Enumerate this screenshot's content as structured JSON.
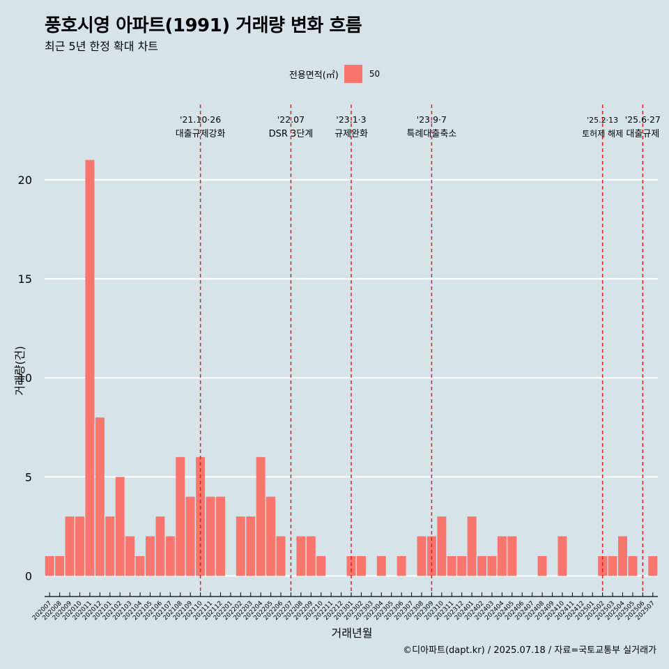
{
  "header": {
    "title": "풍호시영 아파트(1991) 거래량 변화 흐름",
    "subtitle": "최근 5년 한정 확대 차트"
  },
  "legend": {
    "title": "전용면적(㎡)",
    "items": [
      {
        "label": "50",
        "color": "#f8766d"
      }
    ]
  },
  "caption": "©디아파트(dapt.kr) / 2025.07.18 / 자료=국토교통부 실거래가",
  "chart_data": {
    "type": "bar",
    "xlabel": "거래년월",
    "ylabel": "거래량(건)",
    "ylim": [
      -0.9,
      23.8
    ],
    "yticks": [
      0,
      5,
      10,
      15,
      20
    ],
    "bar_color": "#f8766d",
    "categories": [
      "202007",
      "202008",
      "202009",
      "202010",
      "202011",
      "202012",
      "202101",
      "202102",
      "202103",
      "202104",
      "202105",
      "202106",
      "202107",
      "202108",
      "202109",
      "202110",
      "202111",
      "202112",
      "202201",
      "202202",
      "202203",
      "202204",
      "202205",
      "202206",
      "202207",
      "202208",
      "202209",
      "202210",
      "202211",
      "202212",
      "202301",
      "202302",
      "202303",
      "202304",
      "202305",
      "202306",
      "202307",
      "202308",
      "202309",
      "202310",
      "202311",
      "202312",
      "202401",
      "202402",
      "202403",
      "202404",
      "202405",
      "202406",
      "202407",
      "202408",
      "202409",
      "202410",
      "202411",
      "202412",
      "202501",
      "202502",
      "202503",
      "202504",
      "202505",
      "202506",
      "202507"
    ],
    "series": [
      {
        "values": [
          1,
          1,
          3,
          3,
          21,
          8,
          3,
          5,
          2,
          1,
          2,
          3,
          2,
          6,
          4,
          6,
          4,
          4,
          0,
          3,
          3,
          6,
          4,
          2,
          0,
          2,
          2,
          1,
          0,
          0,
          1,
          1,
          0,
          1,
          0,
          1,
          0,
          2,
          2,
          3,
          1,
          1,
          3,
          1,
          1,
          2,
          2,
          0,
          0,
          1,
          0,
          2,
          0,
          0,
          0,
          1,
          1,
          2,
          1,
          0,
          1
        ]
      }
    ],
    "annotations": [
      {
        "x": "202110",
        "date": "'21.10·26",
        "label": "대출규제강화"
      },
      {
        "x": "202207",
        "date": "'22.07",
        "label": "DSR 3단계"
      },
      {
        "x": "202301",
        "date": "'23.1·3",
        "label": "규제완화"
      },
      {
        "x": "202309",
        "date": "'23.9·7",
        "label": "특례대출축소"
      },
      {
        "x": "202502",
        "date": "'25.2·13",
        "label": "토허제 해제"
      },
      {
        "x": "202506",
        "date": "'25.6·27",
        "label": "대출규제"
      }
    ]
  }
}
